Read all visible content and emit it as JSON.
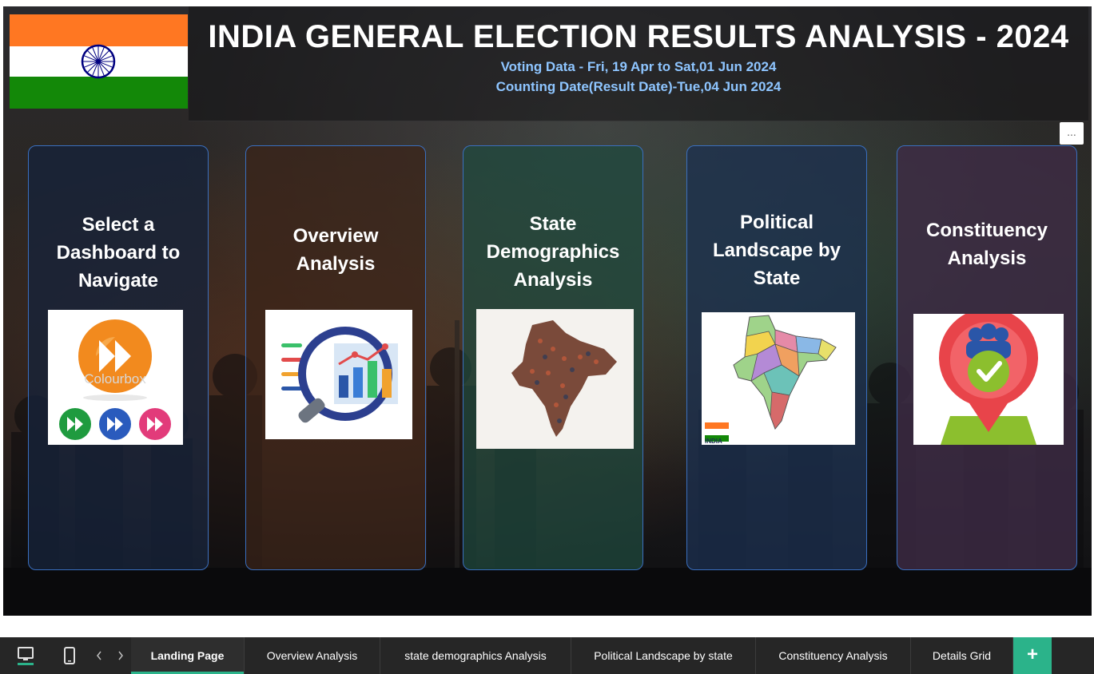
{
  "header": {
    "title": "INDIA GENERAL ELECTION RESULTS ANALYSIS - 2024",
    "voting_line": "Voting Data - Fri, 19 Apr to Sat,01 Jun 2024",
    "counting_line": "Counting Date(Result Date)-Tue,04 Jun 2024"
  },
  "more_button": "...",
  "cards": [
    {
      "title_lines": [
        "Select a",
        "Dashboard to",
        "Navigate"
      ],
      "thumb_icon": "fast-forward-buttons-icon",
      "thumb_watermark": "Colourbox",
      "bg": "#16233a"
    },
    {
      "title_lines": [
        "Overview",
        "Analysis"
      ],
      "thumb_icon": "magnifier-chart-icon",
      "bg": "#3a2418"
    },
    {
      "title_lines": [
        "State",
        "Demographics",
        "Analysis"
      ],
      "thumb_icon": "india-people-map-icon",
      "bg": "#1e4a3e"
    },
    {
      "title_lines": [
        "Political",
        "Landscape by",
        "State"
      ],
      "thumb_icon": "india-states-map-icon",
      "thumb_caption": "INDIA",
      "bg": "#1c3050"
    },
    {
      "title_lines": [
        "Constituency",
        "Analysis"
      ],
      "thumb_icon": "location-pin-check-icon",
      "bg": "#3f2c46"
    }
  ],
  "tabs": [
    {
      "label": "Landing Page",
      "active": true
    },
    {
      "label": "Overview Analysis",
      "active": false
    },
    {
      "label": "state demographics Analysis",
      "active": false
    },
    {
      "label": "Political Landscape by state",
      "active": false
    },
    {
      "label": "Constituency Analysis",
      "active": false
    },
    {
      "label": "Details Grid",
      "active": false
    }
  ],
  "add_tab_label": "+",
  "colors": {
    "saffron": "#ff7722",
    "india_green": "#138808",
    "navy_chakra": "#000080",
    "accent_teal": "#2bb38a",
    "subtitle_blue": "#8ec5ff"
  }
}
